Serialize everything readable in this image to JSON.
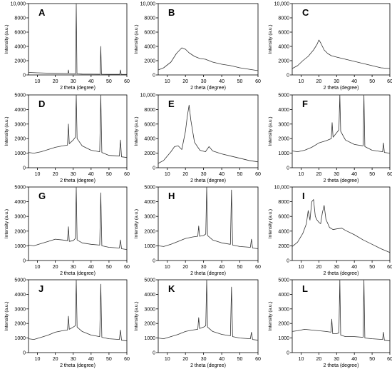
{
  "figure": {
    "panel_labels": [
      "A",
      "B",
      "C",
      "D",
      "E",
      "F",
      "G",
      "H",
      "I",
      "J",
      "K",
      "L"
    ]
  },
  "chart_data": [
    {
      "label": "A",
      "type": "line",
      "xlabel": "2 theta (degree)",
      "ylabel": "Intensity (a.u.)",
      "xlim": [
        5,
        60
      ],
      "ylim": [
        0,
        10000
      ],
      "x_ticks": [
        "10",
        "20",
        "30",
        "40",
        "50",
        "60"
      ],
      "y_ticks": [
        "0",
        "2000",
        "4000",
        "6000",
        "8000",
        "10,000"
      ],
      "series": [
        {
          "x": [
            5,
            10,
            20,
            27,
            27.3,
            27.6,
            30,
            31.3,
            31.7,
            32.1,
            35,
            45,
            45.4,
            45.8,
            50,
            56,
            56.4,
            56.8,
            60
          ],
          "y": [
            350,
            300,
            220,
            200,
            700,
            200,
            150,
            150,
            10000,
            150,
            120,
            100,
            4000,
            100,
            90,
            80,
            700,
            80,
            70
          ]
        }
      ]
    },
    {
      "label": "B",
      "type": "line",
      "xlabel": "2 theta (degree)",
      "ylabel": "Intensity (a.u.)",
      "xlim": [
        5,
        60
      ],
      "ylim": [
        0,
        10000
      ],
      "x_ticks": [
        "10",
        "20",
        "30",
        "40",
        "50",
        "60"
      ],
      "y_ticks": [
        "0",
        "2000",
        "4000",
        "6000",
        "8000",
        "10,000"
      ],
      "series": [
        {
          "x": [
            5,
            8,
            12,
            15,
            18,
            20,
            22,
            25,
            28,
            31,
            35,
            40,
            45,
            50,
            55,
            60
          ],
          "y": [
            700,
            1000,
            1800,
            3000,
            3800,
            3600,
            3100,
            2600,
            2300,
            2200,
            1800,
            1500,
            1300,
            1000,
            800,
            600
          ]
        }
      ]
    },
    {
      "label": "C",
      "type": "line",
      "xlabel": "2 theta (degree)",
      "ylabel": "Intensity (a.u.)",
      "xlim": [
        5,
        60
      ],
      "ylim": [
        0,
        10000
      ],
      "x_ticks": [
        "10",
        "20",
        "30",
        "40",
        "50",
        "60"
      ],
      "y_ticks": [
        "0",
        "2000",
        "4000",
        "6000",
        "8000",
        "10,000"
      ],
      "series": [
        {
          "x": [
            5,
            8,
            11,
            14,
            17,
            19,
            20,
            21,
            23,
            25,
            27,
            30,
            35,
            40,
            45,
            50,
            55,
            60
          ],
          "y": [
            900,
            1300,
            2000,
            2600,
            3500,
            4300,
            4900,
            4500,
            3500,
            3000,
            2700,
            2500,
            2200,
            1900,
            1600,
            1300,
            1000,
            900
          ]
        }
      ]
    },
    {
      "label": "D",
      "type": "line",
      "xlabel": "2 theta (degree)",
      "ylabel": "Intensity (a.u.)",
      "xlim": [
        5,
        60
      ],
      "ylim": [
        0,
        5000
      ],
      "x_ticks": [
        "10",
        "20",
        "30",
        "40",
        "50",
        "60"
      ],
      "y_ticks": [
        "0",
        "1000",
        "2000",
        "3000",
        "4000",
        "5000"
      ],
      "series": [
        {
          "x": [
            5,
            8,
            12,
            16,
            20,
            24,
            26.8,
            27.3,
            27.8,
            30,
            31.2,
            31.7,
            32.2,
            35,
            40,
            44.8,
            45.4,
            46,
            50,
            55.8,
            56.4,
            57,
            60
          ],
          "y": [
            1050,
            1000,
            1100,
            1250,
            1400,
            1500,
            1550,
            3000,
            1650,
            1900,
            2100,
            5000,
            2000,
            1500,
            1200,
            1100,
            5000,
            1050,
            850,
            800,
            1900,
            750,
            700
          ]
        }
      ]
    },
    {
      "label": "E",
      "type": "line",
      "xlabel": "2 theta (degree)",
      "ylabel": "Intensity (a.u.)",
      "xlim": [
        5,
        60
      ],
      "ylim": [
        0,
        10000
      ],
      "x_ticks": [
        "10",
        "20",
        "30",
        "40",
        "50",
        "60"
      ],
      "y_ticks": [
        "0",
        "2000",
        "4000",
        "6000",
        "8000",
        "10,000"
      ],
      "series": [
        {
          "x": [
            5,
            8,
            12,
            14,
            16,
            18,
            20,
            21,
            22,
            23,
            25,
            28,
            31,
            33,
            35,
            40,
            45,
            50,
            55,
            60
          ],
          "y": [
            600,
            1000,
            2200,
            2900,
            3000,
            2500,
            5000,
            7000,
            8600,
            6500,
            3500,
            2400,
            2200,
            2900,
            2300,
            1900,
            1600,
            1300,
            1000,
            800
          ]
        }
      ]
    },
    {
      "label": "F",
      "type": "line",
      "xlabel": "2 theta (degree)",
      "ylabel": "Intensity (a.u.)",
      "xlim": [
        5,
        60
      ],
      "ylim": [
        0,
        5000
      ],
      "x_ticks": [
        "10",
        "20",
        "30",
        "40",
        "50",
        "60"
      ],
      "y_ticks": [
        "0",
        "1000",
        "2000",
        "3000",
        "4000",
        "5000"
      ],
      "series": [
        {
          "x": [
            5,
            8,
            12,
            16,
            20,
            24,
            27,
            27.5,
            28,
            30,
            31.3,
            31.8,
            32.3,
            35,
            40,
            44.9,
            45.4,
            45.9,
            50,
            55.9,
            56.4,
            56.9,
            60
          ],
          "y": [
            1150,
            1100,
            1200,
            1400,
            1700,
            1850,
            2000,
            3100,
            2100,
            2400,
            2600,
            5000,
            2500,
            1900,
            1600,
            1500,
            5000,
            1450,
            1200,
            1100,
            1700,
            1050,
            1000
          ]
        }
      ]
    },
    {
      "label": "G",
      "type": "line",
      "xlabel": "2 theta (degree)",
      "ylabel": "Intensity (a.u.)",
      "xlim": [
        5,
        60
      ],
      "ylim": [
        0,
        5000
      ],
      "x_ticks": [
        "10",
        "20",
        "30",
        "40",
        "50",
        "60"
      ],
      "y_ticks": [
        "0",
        "1000",
        "2000",
        "3000",
        "4000",
        "5000"
      ],
      "series": [
        {
          "x": [
            5,
            8,
            12,
            16,
            20,
            24,
            26.8,
            27.3,
            27.8,
            30,
            31.2,
            31.7,
            32.2,
            35,
            40,
            44.8,
            45.4,
            46,
            50,
            55.8,
            56.4,
            57,
            60
          ],
          "y": [
            1050,
            1000,
            1150,
            1300,
            1450,
            1400,
            1350,
            2300,
            1300,
            1350,
            1500,
            5000,
            1400,
            1200,
            1100,
            1050,
            4600,
            1000,
            900,
            850,
            1400,
            800,
            750
          ]
        }
      ]
    },
    {
      "label": "H",
      "type": "line",
      "xlabel": "2 theta (degree)",
      "ylabel": "Intensity (a.u.)",
      "xlim": [
        5,
        60
      ],
      "ylim": [
        0,
        5000
      ],
      "x_ticks": [
        "10",
        "20",
        "30",
        "40",
        "50",
        "60"
      ],
      "y_ticks": [
        "0",
        "1000",
        "2000",
        "3000",
        "4000",
        "5000"
      ],
      "series": [
        {
          "x": [
            5,
            8,
            12,
            16,
            20,
            24,
            26.8,
            27.3,
            27.8,
            30,
            31.2,
            31.7,
            32.2,
            35,
            40,
            44.8,
            45.4,
            46,
            50,
            55.8,
            56.4,
            57,
            60
          ],
          "y": [
            1000,
            950,
            1100,
            1300,
            1500,
            1600,
            1650,
            2350,
            1650,
            1700,
            1800,
            5000,
            1700,
            1400,
            1200,
            1100,
            4800,
            1050,
            950,
            900,
            1450,
            850,
            800
          ]
        }
      ]
    },
    {
      "label": "I",
      "type": "line",
      "xlabel": "2 theta (degree)",
      "ylabel": "Intensity (a.u.)",
      "xlim": [
        5,
        60
      ],
      "ylim": [
        0,
        10000
      ],
      "x_ticks": [
        "10",
        "20",
        "30",
        "40",
        "50",
        "60"
      ],
      "y_ticks": [
        "0",
        "2000",
        "4000",
        "6000",
        "8000",
        "10,000"
      ],
      "series": [
        {
          "x": [
            5,
            8,
            11,
            13,
            14,
            15,
            16,
            17,
            18,
            19,
            20,
            21,
            22,
            23,
            24,
            26,
            28,
            30,
            33,
            35,
            40,
            45,
            50,
            55,
            60
          ],
          "y": [
            1900,
            2500,
            3700,
            5000,
            6800,
            5500,
            8000,
            8300,
            6000,
            5500,
            5200,
            5000,
            6500,
            7500,
            5600,
            4500,
            4200,
            4300,
            4400,
            4100,
            3500,
            2800,
            2200,
            1600,
            1100
          ]
        }
      ]
    },
    {
      "label": "J",
      "type": "line",
      "xlabel": "2 theta (degree)",
      "ylabel": "Intensity (a.u.)",
      "xlim": [
        5,
        60
      ],
      "ylim": [
        0,
        5000
      ],
      "x_ticks": [
        "10",
        "20",
        "30",
        "40",
        "50",
        "60"
      ],
      "y_ticks": [
        "0",
        "1000",
        "2000",
        "3000",
        "4000",
        "5000"
      ],
      "series": [
        {
          "x": [
            5,
            8,
            12,
            16,
            20,
            24,
            26.8,
            27.3,
            27.8,
            30,
            31.2,
            31.7,
            32.2,
            35,
            40,
            44.8,
            45.4,
            46,
            50,
            55.8,
            56.4,
            57,
            60
          ],
          "y": [
            950,
            900,
            1050,
            1200,
            1400,
            1500,
            1550,
            2500,
            1600,
            1750,
            1850,
            5000,
            1750,
            1450,
            1200,
            1100,
            4700,
            1050,
            950,
            900,
            1550,
            850,
            800
          ]
        }
      ]
    },
    {
      "label": "K",
      "type": "line",
      "xlabel": "2 theta (degree)",
      "ylabel": "Intensity (a.u.)",
      "xlim": [
        5,
        60
      ],
      "ylim": [
        0,
        5000
      ],
      "x_ticks": [
        "10",
        "20",
        "30",
        "40",
        "50",
        "60"
      ],
      "y_ticks": [
        "0",
        "1000",
        "2000",
        "3000",
        "4000",
        "5000"
      ],
      "series": [
        {
          "x": [
            5,
            8,
            12,
            16,
            20,
            24,
            26.8,
            27.3,
            27.8,
            30,
            31.2,
            31.7,
            32.2,
            35,
            40,
            44.8,
            45.4,
            46,
            50,
            55.8,
            56.4,
            57,
            60
          ],
          "y": [
            1000,
            950,
            1100,
            1250,
            1450,
            1550,
            1600,
            2400,
            1650,
            1750,
            1850,
            5000,
            1750,
            1450,
            1250,
            1150,
            4500,
            1100,
            1000,
            950,
            1400,
            900,
            850
          ]
        }
      ]
    },
    {
      "label": "L",
      "type": "line",
      "xlabel": "2 theta (degree)",
      "ylabel": "Intensity (a.u.)",
      "xlim": [
        5,
        60
      ],
      "ylim": [
        0,
        5000
      ],
      "x_ticks": [
        "10",
        "20",
        "30",
        "40",
        "50",
        "60"
      ],
      "y_ticks": [
        "0",
        "1000",
        "2000",
        "3000",
        "4000",
        "5000"
      ],
      "series": [
        {
          "x": [
            5,
            8,
            12,
            16,
            20,
            24,
            26.8,
            27.3,
            27.8,
            30,
            31.3,
            31.8,
            32.3,
            35,
            40,
            44.9,
            45.4,
            45.9,
            50,
            55.9,
            56.4,
            56.9,
            60
          ],
          "y": [
            1450,
            1500,
            1600,
            1550,
            1500,
            1450,
            1400,
            2300,
            1300,
            1300,
            1350,
            5000,
            1200,
            1100,
            1100,
            1050,
            5000,
            1000,
            950,
            900,
            1400,
            850,
            800
          ]
        }
      ]
    }
  ]
}
